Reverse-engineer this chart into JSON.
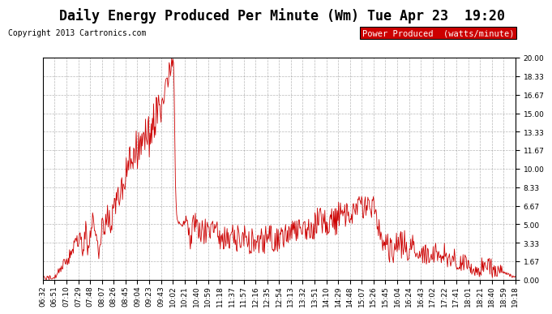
{
  "title": "Daily Energy Produced Per Minute (Wm) Tue Apr 23  19:20",
  "copyright": "Copyright 2013 Cartronics.com",
  "legend_label": "Power Produced  (watts/minute)",
  "legend_bg": "#cc0000",
  "legend_text_color": "#ffffff",
  "line_color": "#cc0000",
  "background_color": "#ffffff",
  "grid_color": "#888888",
  "ylim": [
    0.0,
    20.0
  ],
  "yticks": [
    0.0,
    1.67,
    3.33,
    5.0,
    6.67,
    8.33,
    10.0,
    11.67,
    13.33,
    15.0,
    16.67,
    18.33,
    20.0
  ],
  "x_labels": [
    "06:32",
    "06:51",
    "07:10",
    "07:29",
    "07:48",
    "08:07",
    "08:26",
    "08:45",
    "09:04",
    "09:23",
    "09:43",
    "10:02",
    "10:21",
    "10:40",
    "10:59",
    "11:18",
    "11:37",
    "11:57",
    "12:16",
    "12:35",
    "12:54",
    "13:13",
    "13:32",
    "13:51",
    "14:10",
    "14:29",
    "14:48",
    "15:07",
    "15:26",
    "15:45",
    "16:04",
    "16:24",
    "16:43",
    "17:02",
    "17:22",
    "17:41",
    "18:01",
    "18:21",
    "18:40",
    "18:59",
    "19:18"
  ],
  "title_fontsize": 12,
  "copyright_fontsize": 7,
  "tick_fontsize": 6.5,
  "legend_fontsize": 7.5
}
